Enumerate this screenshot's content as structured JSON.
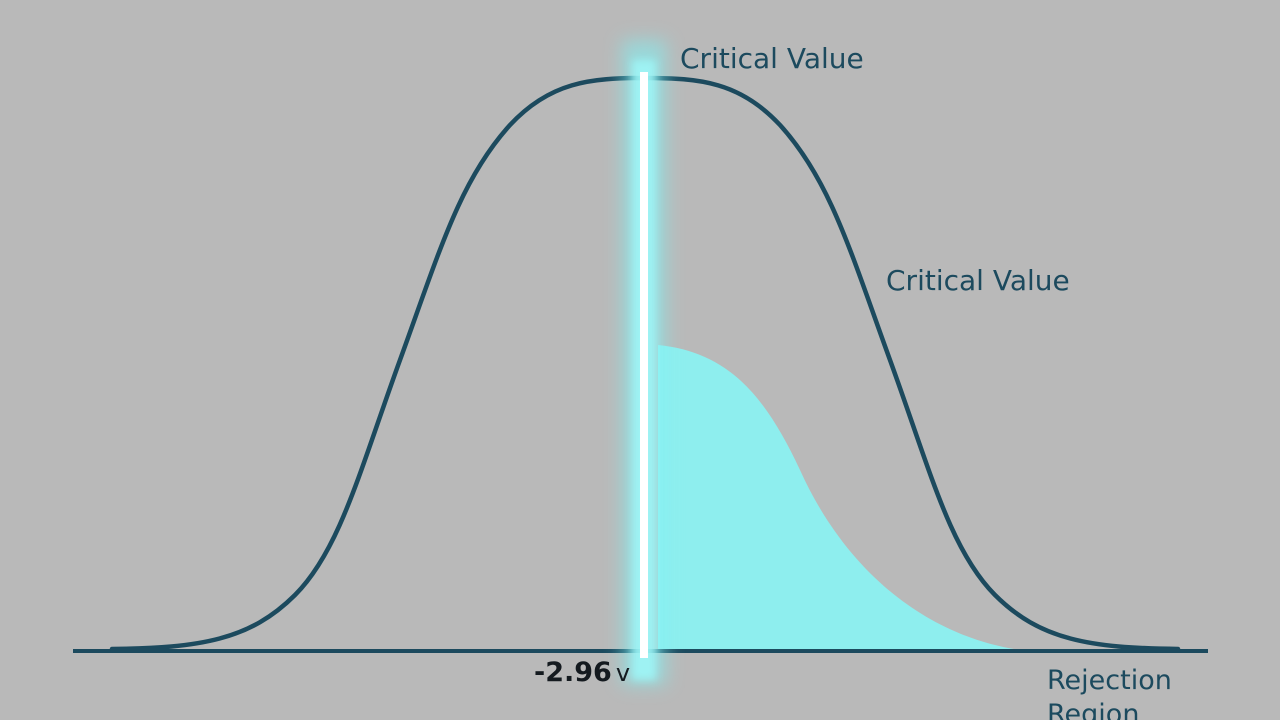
{
  "labels": {
    "critical_value_top": "Critical Value",
    "critical_value_right": "Critical Value",
    "critical_value_number": "-2.96",
    "critical_value_unit": "v",
    "rejection_region_line1": "Rejection",
    "rejection_region_line2": "Region"
  },
  "colors": {
    "background": "#b9b9b9",
    "curve": "#1c4a5e",
    "baseline": "#1c4a5e",
    "rejection_fill": "#8eeeee",
    "critical_line_glow": "#7ff3f5",
    "critical_line_core": "#ffffff",
    "label_text": "#1c4a5e",
    "value_text": "#141a1f"
  }
}
